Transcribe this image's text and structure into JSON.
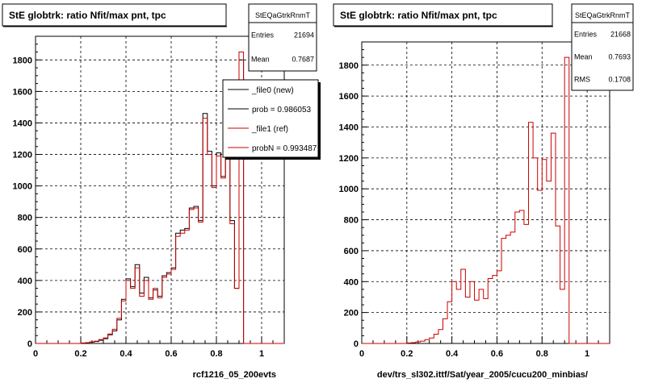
{
  "chart_data": [
    {
      "type": "histogram",
      "title": "StE globtrk: ratio Nfit/max pnt, tpc",
      "xlabel": "rcf1216_05_200evts",
      "xlim": [
        0,
        1.1
      ],
      "ylim": [
        0,
        1950
      ],
      "xticks": [
        "0",
        "0.2",
        "0.4",
        "0.6",
        "0.8",
        "1"
      ],
      "yticks": [
        "0",
        "200",
        "400",
        "600",
        "800",
        "1000",
        "1200",
        "1400",
        "1600",
        "1800"
      ],
      "grid": true,
      "bin_width": 0.02,
      "stats": {
        "name": "StEQaGtrkRnmT",
        "rows": [
          {
            "label": "Entries",
            "value": "21694"
          },
          {
            "label": "Mean",
            "value": "0.7687"
          }
        ]
      },
      "legend": {
        "position": "top-right",
        "entries": [
          {
            "text": "_file0 (new)",
            "color": "#000000"
          },
          {
            "text": "prob = 0.986053",
            "color": "#000000"
          },
          {
            "text": "_file1 (ref)",
            "color": "#cc0000"
          },
          {
            "text": "probN = 0.993487",
            "color": "#cc0000"
          }
        ]
      },
      "series": [
        {
          "name": "_file0 (new)",
          "color": "#000000",
          "values": [
            0,
            0,
            0,
            0,
            0,
            0,
            0,
            0,
            0,
            0,
            2,
            4,
            8,
            12,
            20,
            30,
            55,
            80,
            150,
            280,
            410,
            360,
            500,
            320,
            420,
            290,
            340,
            300,
            430,
            450,
            480,
            700,
            720,
            730,
            860,
            870,
            780,
            1460,
            1220,
            1000,
            1210,
            1060,
            1380,
            780,
            350,
            1800,
            0,
            0,
            0,
            0,
            0,
            0,
            0,
            0,
            0
          ]
        },
        {
          "name": "_file1 (ref)",
          "color": "#cc0000",
          "values": [
            0,
            0,
            0,
            0,
            0,
            0,
            0,
            0,
            0,
            0,
            3,
            5,
            10,
            15,
            25,
            35,
            60,
            90,
            160,
            270,
            400,
            350,
            480,
            300,
            400,
            280,
            350,
            290,
            420,
            440,
            470,
            680,
            700,
            720,
            850,
            860,
            770,
            1430,
            1200,
            990,
            1190,
            1050,
            1360,
            760,
            350,
            1850,
            0,
            0,
            0,
            0,
            0,
            0,
            0,
            0,
            0
          ]
        }
      ]
    },
    {
      "type": "histogram",
      "title": "StE globtrk: ratio Nfit/max pnt, tpc",
      "xlabel": "dev/trs_sl302.ittf/Sat/year_2005/cucu200_minbias/",
      "xlim": [
        0,
        1.1
      ],
      "ylim": [
        0,
        1950
      ],
      "xticks": [
        "0",
        "0.2",
        "0.4",
        "0.6",
        "0.8",
        "1"
      ],
      "yticks": [
        "0",
        "200",
        "400",
        "600",
        "800",
        "1000",
        "1200",
        "1400",
        "1600",
        "1800"
      ],
      "grid": true,
      "bin_width": 0.02,
      "stats": {
        "name": "StEQaGtrkRnmT",
        "rows": [
          {
            "label": "Entries",
            "value": "21668"
          },
          {
            "label": "Mean",
            "value": "0.7693"
          },
          {
            "label": "RMS",
            "value": "0.1708"
          }
        ]
      },
      "series": [
        {
          "name": "_file1 (ref)",
          "color": "#cc0000",
          "values": [
            0,
            0,
            0,
            0,
            0,
            0,
            0,
            0,
            0,
            0,
            3,
            5,
            10,
            15,
            25,
            35,
            60,
            90,
            160,
            270,
            400,
            350,
            480,
            300,
            400,
            280,
            350,
            290,
            420,
            440,
            470,
            680,
            700,
            720,
            850,
            860,
            770,
            1430,
            1200,
            990,
            1190,
            1050,
            1360,
            760,
            350,
            1850,
            0,
            0,
            0,
            0,
            0,
            0,
            0,
            0,
            0
          ]
        }
      ]
    }
  ]
}
